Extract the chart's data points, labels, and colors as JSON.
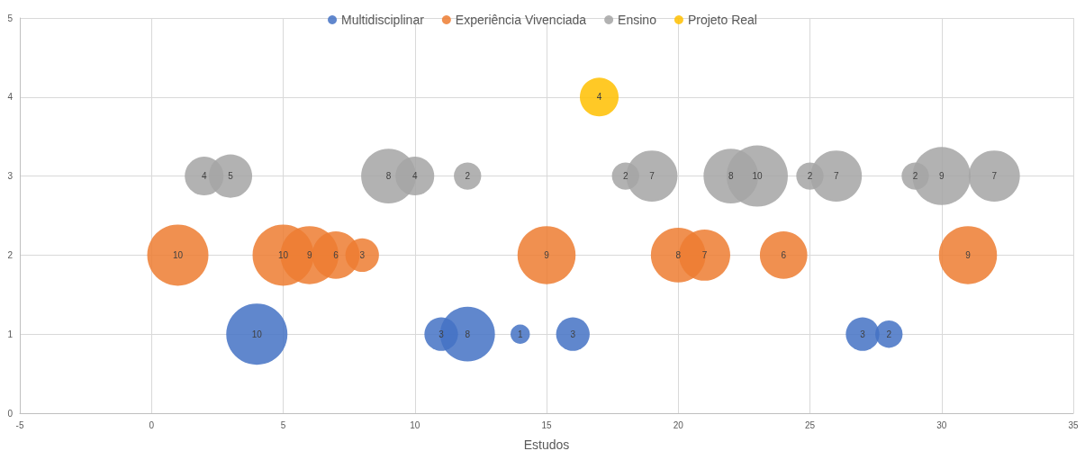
{
  "chart_data": {
    "type": "bubble",
    "xlabel": "Estudos",
    "xlim": [
      -5,
      35
    ],
    "xticks": [
      -5,
      0,
      5,
      10,
      15,
      20,
      25,
      30,
      35
    ],
    "ylim": [
      0,
      5
    ],
    "yticks": [
      0,
      1,
      2,
      3,
      4,
      5
    ],
    "grid": true,
    "legend": "top",
    "series": [
      {
        "name": "Multidisciplinar",
        "color": "#4472c4",
        "x": [
          4,
          11,
          12,
          14,
          16,
          27,
          28
        ],
        "values": [
          1,
          1,
          1,
          1,
          1,
          1,
          1
        ],
        "sizes": [
          1,
          0.3,
          0.8,
          0.1,
          0.3,
          0.3,
          0.2
        ]
      },
      {
        "name": "Experiência Vivenciada",
        "color": "#ed7d31",
        "x": [
          1,
          5,
          6,
          7,
          8,
          15,
          20,
          21,
          24,
          31
        ],
        "values": [
          2,
          2,
          2,
          2,
          2,
          2,
          2,
          2,
          2,
          2
        ],
        "sizes": [
          1,
          1,
          0.9,
          0.6,
          0.3,
          0.9,
          0.8,
          0.7,
          0.6,
          0.9
        ]
      },
      {
        "name": "Ensino",
        "color": "#a5a5a5",
        "x": [
          2,
          3,
          9,
          10,
          12,
          18,
          19,
          22,
          23,
          25,
          26,
          29,
          30,
          32
        ],
        "values": [
          3,
          3,
          3,
          3,
          3,
          3,
          3,
          3,
          3,
          3,
          3,
          3,
          3,
          3
        ],
        "sizes": [
          0.4,
          0.5,
          0.8,
          0.4,
          0.2,
          0.2,
          0.7,
          0.8,
          1,
          0.2,
          0.7,
          0.2,
          0.9,
          0.7
        ]
      },
      {
        "name": "Projeto Real",
        "color": "#ffc000",
        "x": [
          17
        ],
        "values": [
          4
        ],
        "sizes": [
          0.4
        ]
      }
    ],
    "annotations": [
      {
        "text": "4",
        "x": 17,
        "y": 4
      },
      {
        "text": "4",
        "x": 2,
        "y": 3
      },
      {
        "text": "5",
        "x": 3,
        "y": 3
      },
      {
        "text": "8",
        "x": 9,
        "y": 3
      },
      {
        "text": "4",
        "x": 10,
        "y": 3
      },
      {
        "text": "2",
        "x": 12,
        "y": 3
      },
      {
        "text": "2",
        "x": 18,
        "y": 3
      },
      {
        "text": "7",
        "x": 19,
        "y": 3
      },
      {
        "text": "8",
        "x": 22,
        "y": 3
      },
      {
        "text": "10",
        "x": 23,
        "y": 3
      },
      {
        "text": "2",
        "x": 25,
        "y": 3
      },
      {
        "text": "7",
        "x": 26,
        "y": 3
      },
      {
        "text": "2",
        "x": 29,
        "y": 3
      },
      {
        "text": "9",
        "x": 30,
        "y": 3
      },
      {
        "text": "7",
        "x": 32,
        "y": 3
      },
      {
        "text": "10",
        "x": 1,
        "y": 2
      },
      {
        "text": "10",
        "x": 5,
        "y": 2
      },
      {
        "text": "9",
        "x": 6,
        "y": 2
      },
      {
        "text": "6",
        "x": 7,
        "y": 2
      },
      {
        "text": "3",
        "x": 8,
        "y": 2
      },
      {
        "text": "9",
        "x": 15,
        "y": 2
      },
      {
        "text": "8",
        "x": 20,
        "y": 2
      },
      {
        "text": "7",
        "x": 21,
        "y": 2
      },
      {
        "text": "6",
        "x": 24,
        "y": 2
      },
      {
        "text": "9",
        "x": 31,
        "y": 2
      },
      {
        "text": "10",
        "x": 4,
        "y": 1
      },
      {
        "text": "3",
        "x": 11,
        "y": 1
      },
      {
        "text": "8",
        "x": 12,
        "y": 1
      },
      {
        "text": "1",
        "x": 14,
        "y": 1
      },
      {
        "text": "3",
        "x": 16,
        "y": 1
      },
      {
        "text": "3",
        "x": 27,
        "y": 1
      },
      {
        "text": "2",
        "x": 28,
        "y": 1
      }
    ]
  }
}
